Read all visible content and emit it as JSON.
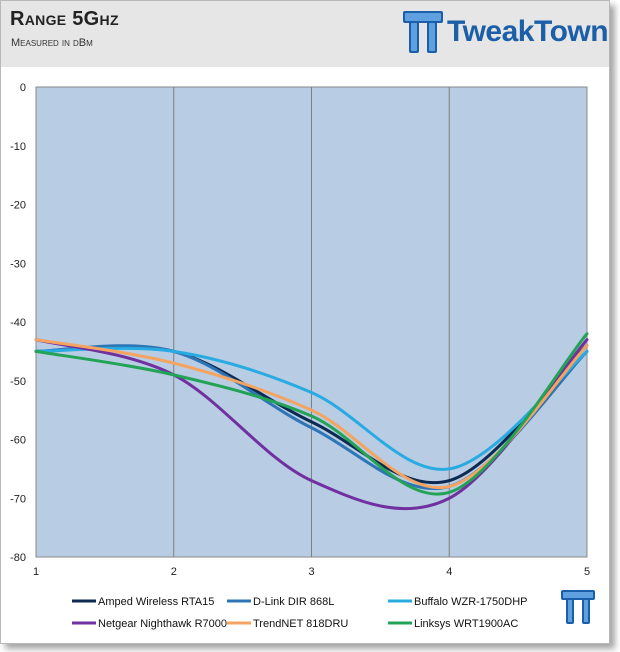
{
  "header": {
    "title": "Range 5Ghz",
    "subtitle": "Measured in dBm",
    "brand": "TweakTown"
  },
  "colors": {
    "plot_bg": "#b8cce4",
    "header_bg": "#e6e6e6",
    "gridline": "#7f7f7f",
    "brand_blue": "#1a5fa8"
  },
  "chart_data": {
    "type": "line",
    "title": "Range 5Ghz",
    "subtitle": "Measured in dBm",
    "xlabel": "",
    "ylabel": "",
    "x": [
      1,
      2,
      3,
      4,
      5
    ],
    "xlim": [
      1,
      5
    ],
    "ylim": [
      -80,
      0
    ],
    "x_ticks": [
      "1",
      "2",
      "3",
      "4",
      "5"
    ],
    "y_ticks": [
      "0",
      "-10",
      "-20",
      "-30",
      "-40",
      "-50",
      "-60",
      "-70",
      "-80"
    ],
    "vertical_grid": true,
    "horizontal_grid": false,
    "smooth": true,
    "legend_position": "bottom",
    "series": [
      {
        "name": "Amped Wireless RTA15",
        "color": "#0d2a52",
        "values": [
          -45,
          -45,
          -57,
          -67,
          -44
        ]
      },
      {
        "name": "D-Link DIR 868L",
        "color": "#2e75b6",
        "values": [
          -45,
          -45,
          -58,
          -68,
          -45
        ]
      },
      {
        "name": "Buffalo WZR-1750DHP",
        "color": "#29abe2",
        "values": [
          -45,
          -45,
          -52,
          -65,
          -45
        ]
      },
      {
        "name": "Netgear Nighthawk R7000",
        "color": "#7030a0",
        "values": [
          -43,
          -49,
          -67,
          -70,
          -43
        ]
      },
      {
        "name": "TrendNET 818DRU",
        "color": "#f4a460",
        "values": [
          -43,
          -47,
          -55,
          -68,
          -44
        ]
      },
      {
        "name": "Linksys WRT1900AC",
        "color": "#22a355",
        "values": [
          -45,
          -49,
          -56,
          -69,
          -42
        ]
      }
    ]
  }
}
